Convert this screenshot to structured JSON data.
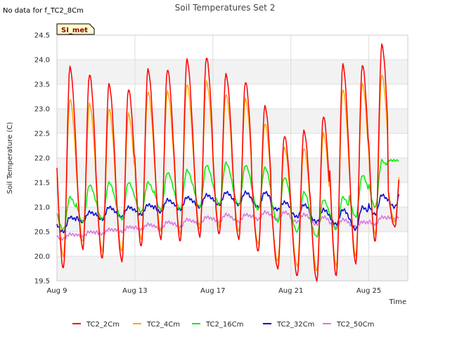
{
  "no_data_note": "No data for f_TC2_8Cm",
  "badge": "SI_met",
  "chart_data": {
    "type": "line",
    "title": "Soil Temperatures Set 2",
    "xlabel": "Time",
    "ylabel": "Soil Temperature (C)",
    "xlim": [
      "2020-08-09",
      "2020-08-27"
    ],
    "ylim": [
      19.5,
      24.5
    ],
    "x_ticks": [
      {
        "date": "2020-08-09",
        "label": "Aug 9"
      },
      {
        "date": "2020-08-13",
        "label": "Aug 13"
      },
      {
        "date": "2020-08-17",
        "label": "Aug 17"
      },
      {
        "date": "2020-08-21",
        "label": "Aug 21"
      },
      {
        "date": "2020-08-25",
        "label": "Aug 25"
      }
    ],
    "y_ticks": [
      "19.5",
      "20.0",
      "20.5",
      "21.0",
      "21.5",
      "22.0",
      "22.5",
      "23.0",
      "23.5",
      "24.0",
      "24.5"
    ],
    "grid": true,
    "alternating_bands": true,
    "legend_position": "bottom",
    "x_dates": [
      "2020-08-09",
      "2020-08-10",
      "2020-08-11",
      "2020-08-12",
      "2020-08-13",
      "2020-08-14",
      "2020-08-15",
      "2020-08-16",
      "2020-08-17",
      "2020-08-18",
      "2020-08-19",
      "2020-08-20",
      "2020-08-21",
      "2020-08-22",
      "2020-08-23",
      "2020-08-24",
      "2020-08-25",
      "2020-08-26"
    ],
    "series": [
      {
        "name": "TC2_2Cm",
        "color": "#ff0000",
        "min": [
          19.75,
          20.15,
          19.95,
          19.9,
          20.2,
          20.35,
          20.3,
          20.4,
          20.45,
          20.35,
          20.1,
          19.75,
          19.6,
          19.5,
          19.6,
          19.85,
          20.3,
          20.6
        ],
        "max": [
          23.85,
          23.7,
          23.5,
          23.4,
          23.8,
          23.8,
          24.0,
          24.05,
          23.7,
          23.55,
          23.05,
          22.45,
          22.55,
          22.85,
          23.9,
          23.9,
          24.3,
          22.0
        ]
      },
      {
        "name": "TC2_4Cm",
        "color": "#ffa500",
        "min": [
          20.0,
          20.3,
          20.1,
          20.1,
          20.35,
          20.5,
          20.45,
          20.55,
          20.6,
          20.5,
          20.25,
          19.9,
          19.8,
          19.7,
          19.8,
          20.0,
          20.45,
          20.7
        ],
        "max": [
          23.2,
          23.1,
          23.0,
          22.9,
          23.35,
          23.35,
          23.5,
          23.55,
          23.3,
          23.2,
          22.7,
          22.2,
          22.2,
          22.5,
          23.4,
          23.5,
          23.7,
          22.0
        ]
      },
      {
        "name": "TC2_16Cm",
        "color": "#00ee00",
        "min": [
          20.55,
          20.7,
          20.75,
          20.75,
          20.9,
          20.95,
          20.95,
          21.0,
          21.05,
          21.05,
          20.95,
          20.7,
          20.5,
          20.4,
          20.55,
          20.8,
          21.0,
          21.95
        ],
        "max": [
          21.2,
          21.45,
          21.5,
          21.5,
          21.5,
          21.7,
          21.75,
          21.85,
          21.9,
          21.85,
          21.8,
          21.6,
          21.3,
          21.15,
          21.2,
          21.65,
          21.95,
          21.95
        ]
      },
      {
        "name": "TC2_32Cm",
        "color": "#0000cc",
        "min": [
          20.5,
          20.7,
          20.75,
          20.8,
          20.85,
          20.9,
          20.95,
          21.0,
          21.05,
          21.05,
          21.0,
          20.95,
          20.8,
          20.7,
          20.65,
          20.55,
          20.85,
          21.0
        ],
        "max": [
          20.8,
          20.9,
          21.0,
          21.0,
          21.05,
          21.15,
          21.2,
          21.25,
          21.3,
          21.3,
          21.3,
          21.1,
          21.05,
          20.95,
          20.95,
          21.0,
          21.25,
          21.35
        ]
      },
      {
        "name": "TC2_50Cm",
        "color": "#dd77dd",
        "min": [
          20.35,
          20.4,
          20.45,
          20.5,
          20.55,
          20.55,
          20.6,
          20.65,
          20.7,
          20.7,
          20.75,
          20.75,
          20.7,
          20.65,
          20.6,
          20.6,
          20.65,
          20.75
        ],
        "max": [
          20.45,
          20.5,
          20.55,
          20.6,
          20.65,
          20.7,
          20.75,
          20.8,
          20.85,
          20.85,
          20.9,
          20.9,
          20.85,
          20.8,
          20.75,
          20.7,
          20.8,
          20.85
        ]
      }
    ]
  }
}
